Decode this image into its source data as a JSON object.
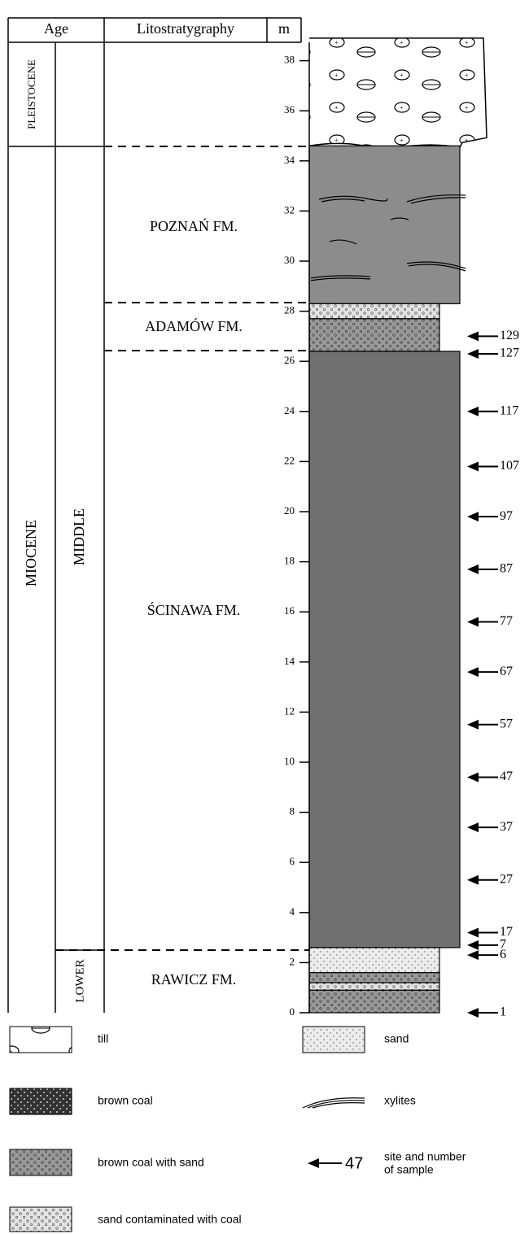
{
  "header": {
    "age": "Age",
    "lithostratigraphy": "Litostratygraphy",
    "depth": "m"
  },
  "ages": {
    "epochs": [
      "PLEISTOCENE",
      "MIOCENE"
    ],
    "subdivisions": [
      "MIDDLE",
      "LOWER"
    ]
  },
  "formations": [
    "POZNAŃ FM.",
    "ADAMÓW FM.",
    "ŚCINAWA FM.",
    "RAWICZ FM."
  ],
  "axis": {
    "ticks": [
      0,
      2,
      4,
      6,
      8,
      10,
      12,
      14,
      16,
      18,
      20,
      22,
      24,
      26,
      28,
      30,
      32,
      34,
      36,
      38
    ]
  },
  "layers": [
    {
      "lithology": "till",
      "bottom": 34.6,
      "top": 38.9
    },
    {
      "color": "#8c8c8c",
      "bottom": 28.3,
      "top": 34.6
    },
    {
      "lithology": "sand contaminated with coal",
      "bottom": 27.7,
      "top": 28.3
    },
    {
      "lithology": "brown coal with sand",
      "bottom": 26.4,
      "top": 27.7
    },
    {
      "color": "#707070",
      "bottom": 2.6,
      "top": 26.4
    },
    {
      "lithology": "sand",
      "bottom": 1.6,
      "top": 2.6
    },
    {
      "lithology": "brown coal with sand",
      "bottom": 1.2,
      "top": 1.6
    },
    {
      "lithology": "sand contaminated with coal",
      "bottom": 0.9,
      "top": 1.2
    },
    {
      "lithology": "brown coal with sand",
      "bottom": 0,
      "top": 0.9
    }
  ],
  "samples": [
    {
      "label": 129,
      "depth": 27.0
    },
    {
      "label": 127,
      "depth": 26.3
    },
    {
      "label": 117,
      "depth": 24.0
    },
    {
      "label": 107,
      "depth": 21.8
    },
    {
      "label": 97,
      "depth": 19.8
    },
    {
      "label": 87,
      "depth": 17.7
    },
    {
      "label": 77,
      "depth": 15.6
    },
    {
      "label": 67,
      "depth": 13.6
    },
    {
      "label": 57,
      "depth": 11.5
    },
    {
      "label": 47,
      "depth": 9.4
    },
    {
      "label": 37,
      "depth": 7.4
    },
    {
      "label": 27,
      "depth": 5.3
    },
    {
      "label": 17,
      "depth": 3.2
    },
    {
      "label": 7,
      "depth": 2.7
    },
    {
      "label": 6,
      "depth": 2.3
    },
    {
      "label": 1,
      "depth": 0
    }
  ],
  "legend": {
    "items": [
      "till",
      "sand",
      "brown coal",
      "xylites",
      "brown coal with sand",
      "sand contaminated with coal"
    ],
    "sample_key": {
      "number": "47",
      "lines": [
        "site and number",
        "of sample"
      ]
    }
  }
}
